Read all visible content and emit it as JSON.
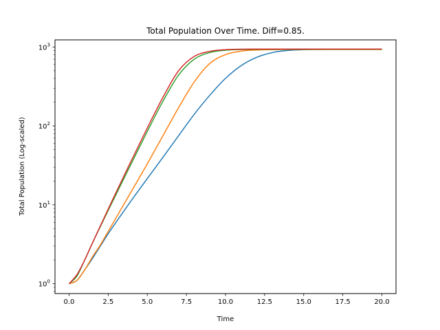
{
  "chart_data": {
    "type": "line",
    "title": "Total Population Over Time. Diff=0.85.",
    "xlabel": "Time",
    "ylabel": "Total Population (Log-scaled)",
    "yscale": "log",
    "xlim": [
      -0.9,
      20.9
    ],
    "ylim": [
      0.75,
      1230
    ],
    "grid": false,
    "x_ticks": [
      0,
      2.5,
      5,
      7.5,
      10,
      12.5,
      15,
      17.5,
      20
    ],
    "x_tick_labels": [
      "0.0",
      "2.5",
      "5.0",
      "7.5",
      "10.0",
      "12.5",
      "15.0",
      "17.5",
      "20.0"
    ],
    "y_ticks": [
      {
        "value": 1,
        "base": "10",
        "exp": "0"
      },
      {
        "value": 10,
        "base": "10",
        "exp": "1"
      },
      {
        "value": 100,
        "base": "10",
        "exp": "2"
      },
      {
        "value": 1000,
        "base": "10",
        "exp": "3"
      }
    ],
    "series": [
      {
        "color": "#1f77b4",
        "x": [
          0,
          0.5,
          1,
          1.5,
          2,
          2.5,
          3,
          4,
          5,
          6,
          7,
          8,
          9,
          10,
          11,
          12,
          13,
          14,
          15,
          16,
          17,
          18,
          19,
          20
        ],
        "y": [
          1,
          1.1,
          1.5,
          2.1,
          3.0,
          4.3,
          6.0,
          11.5,
          21.5,
          40,
          75,
          140,
          245,
          400,
          580,
          740,
          850,
          905,
          925,
          932,
          935,
          935,
          935,
          935
        ]
      },
      {
        "color": "#ff7f0e",
        "x": [
          0,
          0.5,
          1,
          1.5,
          2,
          2.5,
          3,
          4,
          5,
          6,
          7,
          8,
          9,
          10,
          11,
          12,
          13,
          14,
          15,
          16,
          17,
          18,
          19,
          20
        ],
        "y": [
          1,
          1.1,
          1.5,
          2.2,
          3.1,
          4.6,
          6.8,
          15,
          33,
          75,
          170,
          360,
          620,
          800,
          885,
          915,
          925,
          928,
          930,
          930,
          930,
          930,
          930,
          930
        ]
      },
      {
        "color": "#2ca02c",
        "x": [
          0,
          0.5,
          1,
          1.5,
          2,
          2.5,
          3,
          4,
          5,
          6,
          7,
          8,
          9,
          10,
          11,
          12,
          13,
          14,
          15,
          16,
          17,
          18,
          19,
          20
        ],
        "y": [
          1,
          1.25,
          2.0,
          3.3,
          5.3,
          8.5,
          13.5,
          34,
          85,
          205,
          440,
          700,
          850,
          910,
          928,
          932,
          933,
          933,
          933,
          933,
          933,
          933,
          933,
          933
        ]
      },
      {
        "color": "#d62728",
        "x": [
          0,
          0.5,
          1,
          1.5,
          2,
          2.5,
          3,
          4,
          5,
          6,
          7,
          8,
          9,
          10,
          11,
          12,
          13,
          14,
          15,
          16,
          17,
          18,
          19,
          20
        ],
        "y": [
          1,
          1.3,
          2.0,
          3.3,
          5.4,
          8.8,
          14.3,
          37,
          94,
          230,
          500,
          760,
          880,
          925,
          937,
          940,
          940,
          940,
          940,
          940,
          940,
          940,
          940,
          940
        ]
      }
    ]
  }
}
